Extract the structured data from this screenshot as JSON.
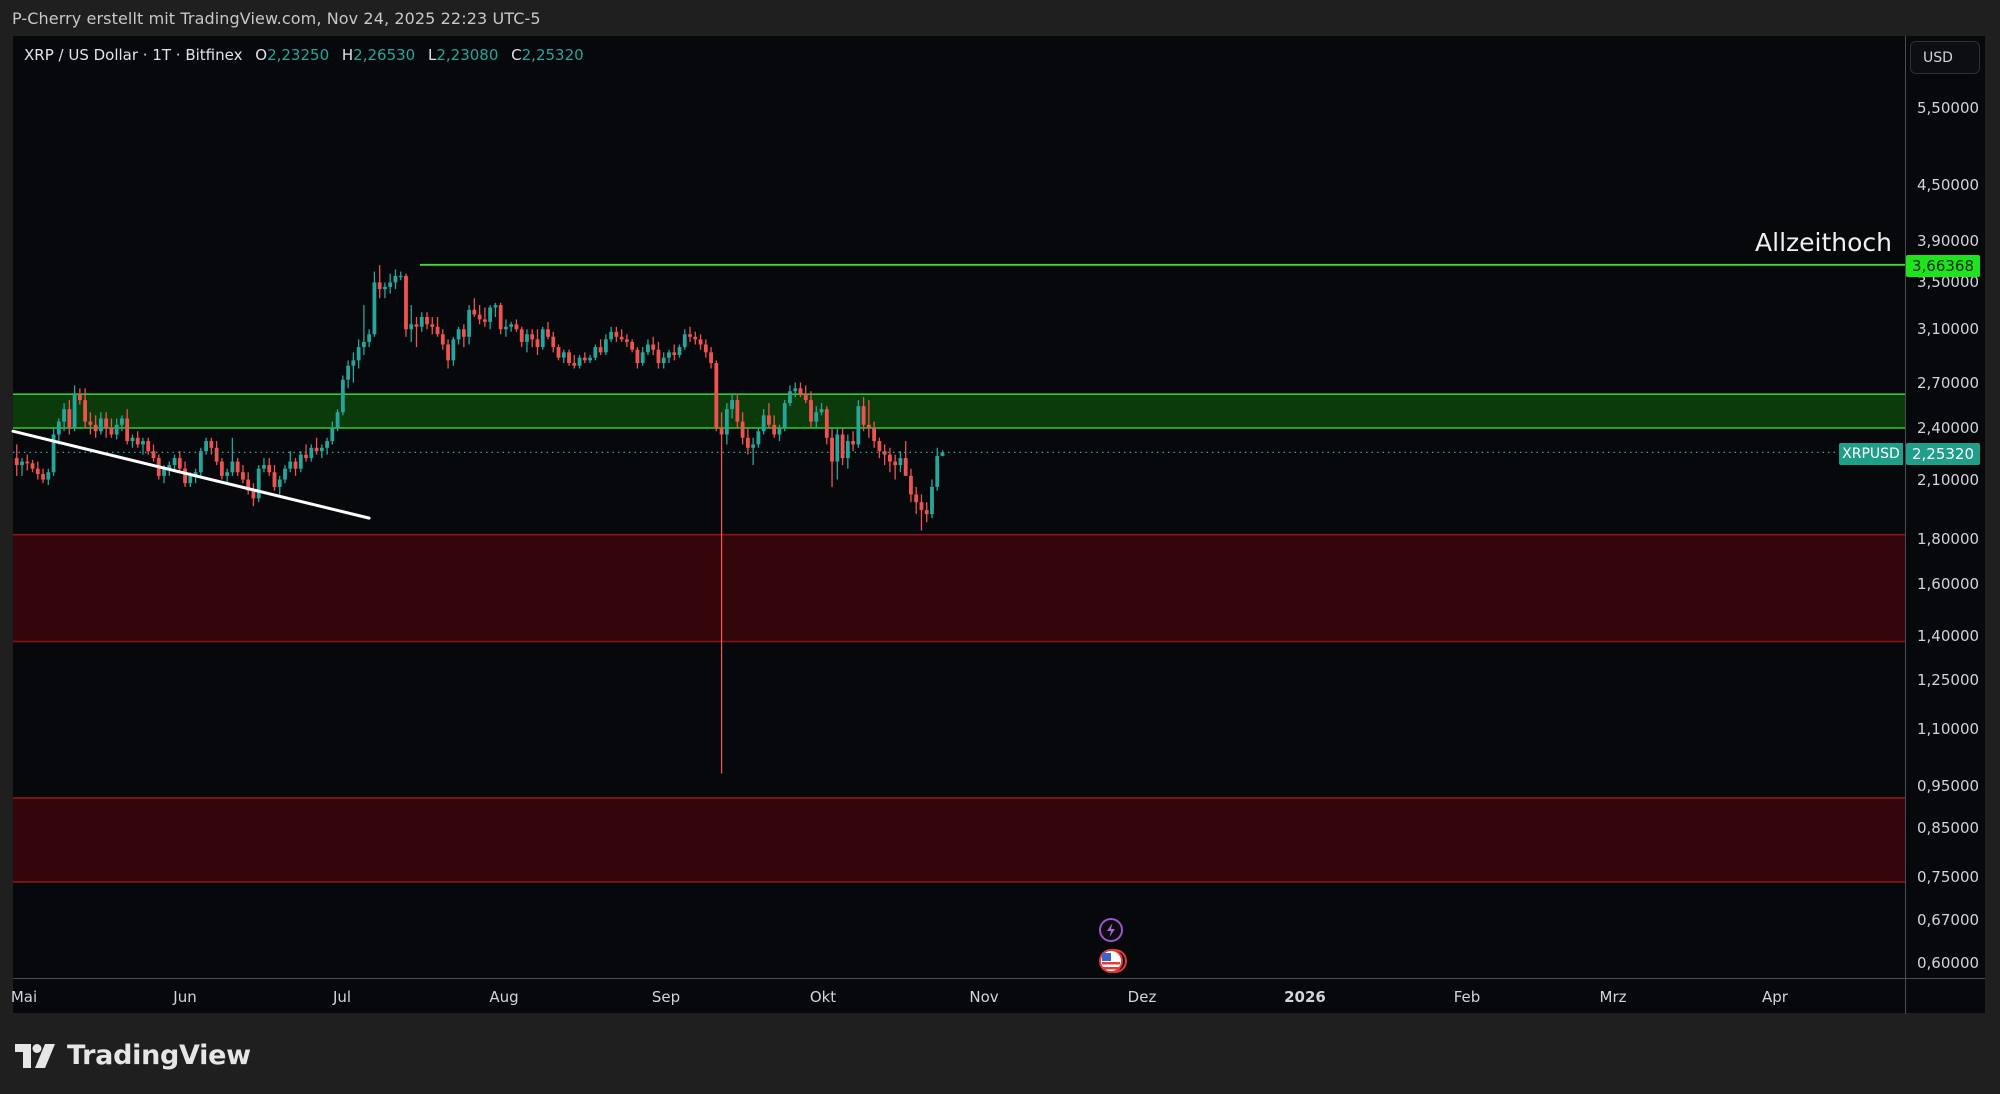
{
  "attribution": "P-Cherry erstellt mit TradingView.com, Nov 24, 2025 22:23 UTC-5",
  "legend": {
    "symbol": "XRP / US Dollar · 1T · Bitfinex",
    "open_label": "O",
    "open": "2,23250",
    "high_label": "H",
    "high": "2,26530",
    "low_label": "L",
    "low": "2,23080",
    "close_label": "C",
    "close": "2,25320"
  },
  "price_axis": {
    "currency_button": "USD",
    "ath_tag": "3,66368",
    "current_tag": "2,25320",
    "symbol_tag": "XRPUSD"
  },
  "annotation": {
    "ath_text": "Allzeithoch"
  },
  "branding": {
    "logo_text": "TradingView"
  },
  "colors": {
    "up": "#26a69a",
    "down": "#ef5350",
    "green_zone_fill": "#0b3a0b",
    "green_zone_line": "#2ecc2e",
    "ath_line": "#3ddc3d",
    "red_zone_fill": "#33060b",
    "red_zone_line": "#8a1518",
    "trendline": "#ffffff",
    "background": "#07080c"
  },
  "chart_data": {
    "type": "candlestick",
    "title": "XRP / US Dollar · 1T · Bitfinex",
    "xlabel": "",
    "ylabel": "USD",
    "y_scale": "log",
    "ylim": [
      0.58,
      6.0
    ],
    "grid": false,
    "x_tick_labels": [
      "Mai",
      "Jun",
      "Jul",
      "Aug",
      "Sep",
      "Okt",
      "Nov",
      "Dez",
      "2026",
      "Feb",
      "Mrz",
      "Apr"
    ],
    "y_tick_labels": [
      "5,50000",
      "4,50000",
      "3,90000",
      "3,50000",
      "3,10000",
      "2,70000",
      "2,40000",
      "2,10000",
      "1,80000",
      "1,60000",
      "1,40000",
      "1,25000",
      "1,10000",
      "0,95000",
      "0,85000",
      "0,75000",
      "0,67000",
      "0,60000"
    ],
    "last": {
      "open": 2.2325,
      "high": 2.2653,
      "low": 2.2308,
      "close": 2.2532
    },
    "levels": {
      "all_time_high": {
        "price": 3.66368,
        "label": "Allzeithoch"
      },
      "current_price": 2.2532
    },
    "zones": [
      {
        "type": "resistance",
        "color": "green",
        "from": 2.4,
        "to": 2.62
      },
      {
        "type": "support",
        "color": "red",
        "from": 1.38,
        "to": 1.82
      },
      {
        "type": "support",
        "color": "red",
        "from": 0.74,
        "to": 0.92
      }
    ],
    "trendline": {
      "start": {
        "date": "2025-05-01",
        "price": 2.38
      },
      "end": {
        "date": "2025-07-06",
        "price": 1.9
      }
    },
    "events": [
      {
        "date": "2025-11-26",
        "type": "lightning"
      },
      {
        "date": "2025-11-26",
        "type": "us-economic"
      }
    ],
    "candles_start_date": "2025-04-30",
    "candles": [
      [
        2.22,
        2.3,
        2.12,
        2.18
      ],
      [
        2.18,
        2.22,
        2.12,
        2.2
      ],
      [
        2.2,
        2.24,
        2.15,
        2.19
      ],
      [
        2.19,
        2.21,
        2.14,
        2.16
      ],
      [
        2.16,
        2.2,
        2.1,
        2.13
      ],
      [
        2.13,
        2.16,
        2.08,
        2.1
      ],
      [
        2.1,
        2.16,
        2.07,
        2.14
      ],
      [
        2.14,
        2.4,
        2.12,
        2.36
      ],
      [
        2.36,
        2.46,
        2.3,
        2.44
      ],
      [
        2.44,
        2.56,
        2.38,
        2.52
      ],
      [
        2.52,
        2.58,
        2.36,
        2.4
      ],
      [
        2.4,
        2.68,
        2.38,
        2.62
      ],
      [
        2.62,
        2.66,
        2.55,
        2.58
      ],
      [
        2.58,
        2.66,
        2.4,
        2.44
      ],
      [
        2.44,
        2.5,
        2.36,
        2.42
      ],
      [
        2.42,
        2.48,
        2.34,
        2.38
      ],
      [
        2.38,
        2.5,
        2.36,
        2.46
      ],
      [
        2.46,
        2.5,
        2.34,
        2.4
      ],
      [
        2.4,
        2.46,
        2.34,
        2.36
      ],
      [
        2.36,
        2.46,
        2.33,
        2.42
      ],
      [
        2.42,
        2.48,
        2.38,
        2.46
      ],
      [
        2.46,
        2.52,
        2.3,
        2.32
      ],
      [
        2.32,
        2.36,
        2.28,
        2.34
      ],
      [
        2.34,
        2.38,
        2.28,
        2.3
      ],
      [
        2.3,
        2.34,
        2.24,
        2.32
      ],
      [
        2.32,
        2.34,
        2.24,
        2.26
      ],
      [
        2.26,
        2.3,
        2.2,
        2.22
      ],
      [
        2.22,
        2.24,
        2.1,
        2.12
      ],
      [
        2.12,
        2.18,
        2.08,
        2.16
      ],
      [
        2.16,
        2.2,
        2.12,
        2.18
      ],
      [
        2.18,
        2.24,
        2.14,
        2.22
      ],
      [
        2.22,
        2.26,
        2.14,
        2.16
      ],
      [
        2.16,
        2.2,
        2.06,
        2.08
      ],
      [
        2.08,
        2.14,
        2.06,
        2.12
      ],
      [
        2.12,
        2.16,
        2.08,
        2.14
      ],
      [
        2.14,
        2.28,
        2.12,
        2.26
      ],
      [
        2.26,
        2.34,
        2.24,
        2.32
      ],
      [
        2.32,
        2.34,
        2.24,
        2.28
      ],
      [
        2.28,
        2.32,
        2.18,
        2.2
      ],
      [
        2.2,
        2.22,
        2.1,
        2.12
      ],
      [
        2.12,
        2.16,
        2.08,
        2.14
      ],
      [
        2.14,
        2.34,
        2.12,
        2.2
      ],
      [
        2.2,
        2.22,
        2.12,
        2.14
      ],
      [
        2.14,
        2.18,
        2.08,
        2.1
      ],
      [
        2.1,
        2.14,
        2.02,
        2.04
      ],
      [
        2.04,
        2.08,
        1.96,
        2.0
      ],
      [
        2.0,
        2.18,
        1.98,
        2.16
      ],
      [
        2.16,
        2.22,
        2.14,
        2.18
      ],
      [
        2.18,
        2.22,
        2.12,
        2.14
      ],
      [
        2.14,
        2.18,
        2.04,
        2.06
      ],
      [
        2.06,
        2.12,
        2.02,
        2.1
      ],
      [
        2.1,
        2.18,
        2.08,
        2.16
      ],
      [
        2.16,
        2.26,
        2.14,
        2.2
      ],
      [
        2.2,
        2.22,
        2.12,
        2.16
      ],
      [
        2.16,
        2.26,
        2.14,
        2.24
      ],
      [
        2.24,
        2.3,
        2.2,
        2.22
      ],
      [
        2.22,
        2.3,
        2.2,
        2.28
      ],
      [
        2.28,
        2.34,
        2.24,
        2.26
      ],
      [
        2.26,
        2.3,
        2.22,
        2.28
      ],
      [
        2.28,
        2.34,
        2.24,
        2.32
      ],
      [
        2.32,
        2.44,
        2.3,
        2.4
      ],
      [
        2.4,
        2.52,
        2.38,
        2.5
      ],
      [
        2.5,
        2.75,
        2.48,
        2.72
      ],
      [
        2.72,
        2.86,
        2.66,
        2.82
      ],
      [
        2.82,
        2.92,
        2.7,
        2.86
      ],
      [
        2.86,
        3.02,
        2.8,
        2.96
      ],
      [
        2.96,
        3.3,
        2.9,
        3.0
      ],
      [
        3.0,
        3.1,
        2.96,
        3.06
      ],
      [
        3.06,
        3.6,
        3.04,
        3.5
      ],
      [
        3.5,
        3.66,
        3.36,
        3.44
      ],
      [
        3.44,
        3.5,
        3.36,
        3.46
      ],
      [
        3.46,
        3.58,
        3.4,
        3.5
      ],
      [
        3.5,
        3.62,
        3.44,
        3.56
      ],
      [
        3.56,
        3.6,
        3.52,
        3.56
      ],
      [
        3.56,
        3.58,
        3.04,
        3.1
      ],
      [
        3.1,
        3.3,
        3.0,
        3.14
      ],
      [
        3.14,
        3.2,
        2.96,
        3.12
      ],
      [
        3.12,
        3.24,
        3.08,
        3.2
      ],
      [
        3.2,
        3.24,
        3.1,
        3.14
      ],
      [
        3.14,
        3.2,
        3.06,
        3.12
      ],
      [
        3.12,
        3.2,
        3.04,
        3.06
      ],
      [
        3.06,
        3.1,
        2.94,
        2.98
      ],
      [
        2.98,
        3.02,
        2.8,
        2.86
      ],
      [
        2.86,
        3.04,
        2.82,
        3.02
      ],
      [
        3.02,
        3.12,
        2.98,
        3.1
      ],
      [
        3.1,
        3.14,
        2.96,
        3.04
      ],
      [
        3.04,
        3.3,
        2.98,
        3.26
      ],
      [
        3.26,
        3.36,
        3.2,
        3.22
      ],
      [
        3.22,
        3.3,
        3.14,
        3.18
      ],
      [
        3.18,
        3.28,
        3.12,
        3.16
      ],
      [
        3.16,
        3.3,
        3.1,
        3.28
      ],
      [
        3.28,
        3.32,
        3.2,
        3.3
      ],
      [
        3.3,
        3.32,
        3.06,
        3.1
      ],
      [
        3.1,
        3.18,
        3.04,
        3.12
      ],
      [
        3.12,
        3.16,
        3.08,
        3.14
      ],
      [
        3.14,
        3.18,
        3.08,
        3.1
      ],
      [
        3.1,
        3.12,
        2.96,
        3.0
      ],
      [
        3.0,
        3.1,
        2.92,
        3.06
      ],
      [
        3.06,
        3.1,
        2.96,
        3.02
      ],
      [
        3.02,
        3.1,
        2.9,
        2.96
      ],
      [
        2.96,
        3.12,
        2.94,
        3.1
      ],
      [
        3.1,
        3.16,
        3.02,
        3.04
      ],
      [
        3.04,
        3.08,
        2.92,
        2.96
      ],
      [
        2.96,
        2.98,
        2.86,
        2.88
      ],
      [
        2.88,
        2.94,
        2.84,
        2.92
      ],
      [
        2.92,
        2.94,
        2.82,
        2.84
      ],
      [
        2.84,
        2.9,
        2.8,
        2.82
      ],
      [
        2.82,
        2.9,
        2.8,
        2.88
      ],
      [
        2.88,
        2.92,
        2.84,
        2.86
      ],
      [
        2.86,
        2.9,
        2.84,
        2.88
      ],
      [
        2.88,
        2.98,
        2.86,
        2.96
      ],
      [
        2.96,
        3.02,
        2.9,
        2.92
      ],
      [
        2.92,
        3.06,
        2.9,
        3.02
      ],
      [
        3.02,
        3.12,
        3.0,
        3.08
      ],
      [
        3.08,
        3.12,
        3.0,
        3.04
      ],
      [
        3.04,
        3.1,
        3.0,
        3.02
      ],
      [
        3.02,
        3.06,
        2.96,
        3.0
      ],
      [
        3.0,
        3.02,
        2.92,
        2.94
      ],
      [
        2.94,
        2.96,
        2.8,
        2.84
      ],
      [
        2.84,
        2.96,
        2.82,
        2.92
      ],
      [
        2.92,
        3.02,
        2.9,
        2.98
      ],
      [
        2.98,
        3.04,
        2.9,
        2.94
      ],
      [
        2.94,
        3.0,
        2.8,
        2.84
      ],
      [
        2.84,
        2.92,
        2.8,
        2.88
      ],
      [
        2.88,
        2.94,
        2.84,
        2.92
      ],
      [
        2.92,
        2.98,
        2.86,
        2.9
      ],
      [
        2.9,
        2.98,
        2.88,
        2.96
      ],
      [
        2.96,
        3.1,
        2.94,
        3.06
      ],
      [
        3.06,
        3.12,
        3.0,
        3.04
      ],
      [
        3.04,
        3.08,
        2.98,
        3.02
      ],
      [
        3.02,
        3.06,
        2.94,
        2.98
      ],
      [
        2.98,
        3.02,
        2.88,
        2.92
      ],
      [
        2.92,
        2.96,
        2.8,
        2.84
      ],
      [
        2.84,
        2.86,
        2.38,
        2.4
      ],
      [
        2.4,
        2.5,
        0.98,
        2.36
      ],
      [
        2.36,
        2.56,
        2.3,
        2.52
      ],
      [
        2.52,
        2.62,
        2.46,
        2.58
      ],
      [
        2.58,
        2.62,
        2.4,
        2.44
      ],
      [
        2.44,
        2.5,
        2.3,
        2.34
      ],
      [
        2.34,
        2.4,
        2.24,
        2.28
      ],
      [
        2.28,
        2.34,
        2.18,
        2.3
      ],
      [
        2.3,
        2.4,
        2.28,
        2.38
      ],
      [
        2.38,
        2.52,
        2.36,
        2.48
      ],
      [
        2.48,
        2.56,
        2.4,
        2.42
      ],
      [
        2.42,
        2.48,
        2.34,
        2.36
      ],
      [
        2.36,
        2.42,
        2.32,
        2.4
      ],
      [
        2.4,
        2.58,
        2.38,
        2.56
      ],
      [
        2.56,
        2.68,
        2.54,
        2.64
      ],
      [
        2.64,
        2.7,
        2.6,
        2.66
      ],
      [
        2.66,
        2.7,
        2.6,
        2.62
      ],
      [
        2.62,
        2.68,
        2.56,
        2.58
      ],
      [
        2.58,
        2.64,
        2.4,
        2.44
      ],
      [
        2.44,
        2.54,
        2.4,
        2.5
      ],
      [
        2.5,
        2.56,
        2.48,
        2.52
      ],
      [
        2.52,
        2.54,
        2.3,
        2.34
      ],
      [
        2.34,
        2.4,
        2.06,
        2.2
      ],
      [
        2.2,
        2.4,
        2.1,
        2.36
      ],
      [
        2.36,
        2.4,
        2.18,
        2.22
      ],
      [
        2.22,
        2.36,
        2.16,
        2.32
      ],
      [
        2.32,
        2.38,
        2.26,
        2.3
      ],
      [
        2.3,
        2.58,
        2.28,
        2.54
      ],
      [
        2.54,
        2.6,
        2.38,
        2.42
      ],
      [
        2.42,
        2.58,
        2.34,
        2.4
      ],
      [
        2.4,
        2.44,
        2.28,
        2.32
      ],
      [
        2.32,
        2.34,
        2.22,
        2.26
      ],
      [
        2.26,
        2.3,
        2.18,
        2.24
      ],
      [
        2.24,
        2.28,
        2.14,
        2.2
      ],
      [
        2.2,
        2.24,
        2.1,
        2.18
      ],
      [
        2.18,
        2.26,
        2.14,
        2.22
      ],
      [
        2.22,
        2.32,
        2.16,
        2.12
      ],
      [
        2.12,
        2.16,
        1.98,
        2.02
      ],
      [
        2.02,
        2.06,
        1.92,
        1.98
      ],
      [
        1.98,
        2.02,
        1.84,
        1.94
      ],
      [
        1.94,
        1.98,
        1.88,
        1.92
      ],
      [
        1.92,
        2.1,
        1.9,
        2.06
      ],
      [
        2.06,
        2.28,
        2.04,
        2.2325
      ],
      [
        2.2325,
        2.2653,
        2.2308,
        2.2532
      ]
    ]
  }
}
